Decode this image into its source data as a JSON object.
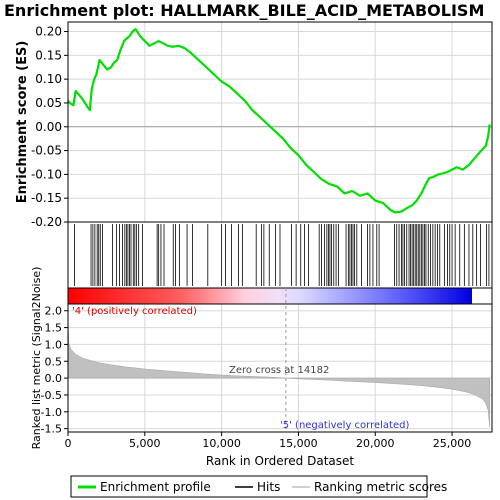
{
  "chart_data": [
    {
      "type": "line",
      "panel": "enrichment",
      "title": "Enrichment plot: HALLMARK_BILE_ACID_METABOLISM",
      "xlabel": "",
      "ylabel": "Enrichment score (ES)",
      "xlim": [
        0,
        27600
      ],
      "ylim": [
        -0.2,
        0.22
      ],
      "yticks": [
        -0.2,
        -0.15,
        -0.1,
        -0.05,
        0.0,
        0.05,
        0.1,
        0.15,
        0.2
      ],
      "ytick_labels": [
        "-0.20",
        "-0.15",
        "-0.10",
        "-0.05",
        "0.00",
        "0.05",
        "0.10",
        "0.15",
        "0.20"
      ],
      "grid": true,
      "series": [
        {
          "name": "Enrichment profile",
          "color": "#00e000",
          "x": [
            0,
            120,
            350,
            500,
            900,
            1300,
            1420,
            1550,
            1700,
            1850,
            2050,
            2300,
            2550,
            2800,
            3000,
            3200,
            3400,
            3650,
            3800,
            4000,
            4200,
            4400,
            4700,
            5000,
            5300,
            5600,
            5900,
            6200,
            6500,
            6800,
            7200,
            7600,
            8000,
            8500,
            9000,
            9500,
            10000,
            10500,
            11000,
            11500,
            12000,
            12500,
            13000,
            13500,
            14000,
            14500,
            15000,
            15500,
            16000,
            16500,
            17000,
            17500,
            18000,
            18500,
            19000,
            19500,
            20000,
            20500,
            21000,
            21300,
            21700,
            22100,
            22400,
            22700,
            23000,
            23300,
            23500,
            23800,
            24100,
            24400,
            24700,
            25000,
            25300,
            25700,
            26100,
            26500,
            26900,
            27200,
            27350,
            27450
          ],
          "y": [
            0.055,
            0.05,
            0.045,
            0.075,
            0.06,
            0.04,
            0.035,
            0.08,
            0.1,
            0.11,
            0.14,
            0.13,
            0.12,
            0.125,
            0.135,
            0.14,
            0.16,
            0.18,
            0.185,
            0.19,
            0.2,
            0.205,
            0.19,
            0.18,
            0.17,
            0.175,
            0.18,
            0.175,
            0.17,
            0.168,
            0.17,
            0.165,
            0.155,
            0.14,
            0.125,
            0.11,
            0.095,
            0.085,
            0.07,
            0.055,
            0.035,
            0.02,
            0.005,
            -0.01,
            -0.025,
            -0.045,
            -0.06,
            -0.08,
            -0.095,
            -0.11,
            -0.12,
            -0.125,
            -0.14,
            -0.135,
            -0.145,
            -0.14,
            -0.155,
            -0.16,
            -0.175,
            -0.18,
            -0.178,
            -0.17,
            -0.165,
            -0.155,
            -0.14,
            -0.12,
            -0.108,
            -0.105,
            -0.1,
            -0.098,
            -0.095,
            -0.09,
            -0.085,
            -0.09,
            -0.08,
            -0.065,
            -0.05,
            -0.04,
            -0.02,
            0.005
          ]
        }
      ]
    },
    {
      "type": "scatter",
      "panel": "hits",
      "series": [
        {
          "name": "Hits",
          "color": "#000000",
          "x": [
            420,
            1500,
            1620,
            1750,
            1900,
            2000,
            2100,
            2250,
            2900,
            3150,
            3350,
            3550,
            3700,
            3800,
            3900,
            4000,
            4100,
            4250,
            4350,
            4450,
            4600,
            4850,
            5800,
            5900,
            6050,
            6250,
            6850,
            7000,
            7250,
            7750,
            8100,
            9100,
            10000,
            10250,
            10650,
            11100,
            11350,
            12250,
            12600,
            12750,
            13100,
            13500,
            13800,
            14550,
            14850,
            15150,
            15400,
            15650,
            16350,
            16500,
            16700,
            16850,
            16950,
            17050,
            17150,
            17300,
            17450,
            17600,
            18100,
            18250,
            18350,
            18450,
            18550,
            18650,
            18800,
            19100,
            19500,
            19650,
            19850,
            20100,
            20250,
            21250,
            21400,
            21550,
            21700,
            21800,
            21900,
            22050,
            22200,
            22300,
            22400,
            22500,
            22600,
            22700,
            22800,
            22900,
            23000,
            23100,
            23200,
            23300,
            23450,
            23600,
            23750,
            23900,
            24050,
            24200,
            24500,
            24700,
            24850,
            25000,
            25200,
            25500,
            25800,
            26100,
            26350,
            26600,
            26850,
            27250,
            27400
          ]
        }
      ]
    },
    {
      "type": "area",
      "panel": "ranked-metric",
      "xlabel": "Rank in Ordered Dataset",
      "ylabel": "Ranked list metric (Signal2Noise)",
      "xlim": [
        0,
        27600
      ],
      "ylim": [
        -1.6,
        2.2
      ],
      "yticks": [
        -1.5,
        -1.0,
        -0.5,
        0.0,
        0.5,
        1.0,
        1.5,
        2.0
      ],
      "ytick_labels": [
        "-1.5",
        "-1.0",
        "-0.5",
        "0.0",
        "0.5",
        "1.0",
        "1.5",
        "2.0"
      ],
      "xticks": [
        0,
        5000,
        10000,
        15000,
        20000,
        25000
      ],
      "xtick_labels": [
        "0",
        "5,000",
        "10,000",
        "15,000",
        "20,000",
        "25,000"
      ],
      "grid": true,
      "series": [
        {
          "name": "Ranking metric scores",
          "color": "#c0c0c0",
          "x": [
            0,
            60,
            200,
            500,
            1000,
            2000,
            3000,
            4000,
            5000,
            6000,
            7000,
            8000,
            9000,
            10000,
            11000,
            12000,
            13000,
            14182,
            15000,
            16000,
            17000,
            18000,
            19000,
            20000,
            21000,
            22000,
            23000,
            24000,
            25000,
            26000,
            26500,
            27000,
            27200,
            27350,
            27450
          ],
          "y": [
            1.75,
            1.0,
            0.85,
            0.7,
            0.58,
            0.46,
            0.38,
            0.32,
            0.27,
            0.23,
            0.19,
            0.16,
            0.12,
            0.09,
            0.07,
            0.05,
            0.03,
            0.0,
            -0.02,
            -0.04,
            -0.06,
            -0.09,
            -0.11,
            -0.13,
            -0.16,
            -0.19,
            -0.22,
            -0.27,
            -0.33,
            -0.42,
            -0.5,
            -0.62,
            -0.75,
            -0.95,
            -1.45
          ]
        }
      ],
      "annotations": {
        "zero_cross": "Zero cross at 14182",
        "positive_label": "'4' (positively correlated)",
        "negative_label": "'5' (negatively correlated)"
      },
      "zero_cross_rank": 14182
    }
  ],
  "legend": {
    "items": [
      {
        "label": "Enrichment profile",
        "color": "#00e000"
      },
      {
        "label": "Hits",
        "color": "#000000"
      },
      {
        "label": "Ranking metric scores",
        "color": "#c0c0c0"
      }
    ],
    "placement": "bottom"
  },
  "colors": {
    "positive_text": "#e00000",
    "negative_text": "#3333cc",
    "heatmap_red": "#ff0000",
    "heatmap_blue": "#0000ff"
  }
}
